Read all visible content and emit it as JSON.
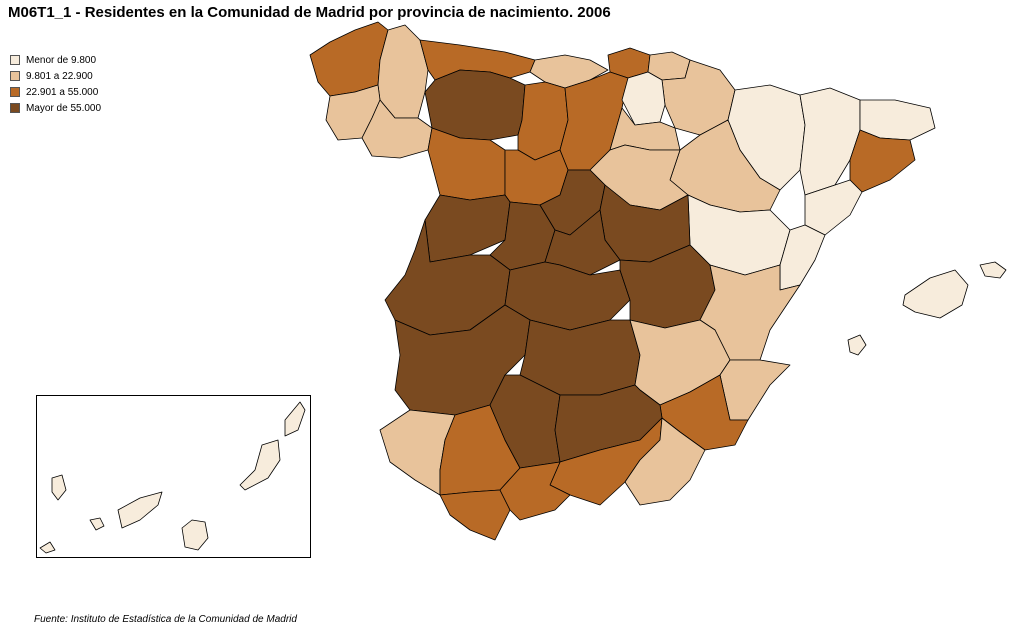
{
  "title": "M06T1_1 - Residentes en la Comunidad de Madrid por provincia de nacimiento. 2006",
  "footer": "Fuente: Instituto de Estadística de la Comunidad de Madrid",
  "legend": [
    {
      "label": "Menor de 9.800",
      "color": "#f7ecdc"
    },
    {
      "label": "9.801 a 22.900",
      "color": "#e8c39b"
    },
    {
      "label": "22.901 a 55.000",
      "color": "#b86a26"
    },
    {
      "label": "Mayor de 55.000",
      "color": "#7a4a20"
    }
  ],
  "chart_data": {
    "type": "choropleth",
    "classes": [
      "Menor de 9.800",
      "9.801 a 22.900",
      "22.901 a 55.000",
      "Mayor de 55.000"
    ],
    "provinces": [
      {
        "id": "coruna",
        "class": 2
      },
      {
        "id": "lugo",
        "class": 1
      },
      {
        "id": "asturias",
        "class": 2
      },
      {
        "id": "cantabria",
        "class": 1
      },
      {
        "id": "vizcaya",
        "class": 2
      },
      {
        "id": "guipuzcoa",
        "class": 1
      },
      {
        "id": "pontevedra",
        "class": 1
      },
      {
        "id": "orense",
        "class": 1
      },
      {
        "id": "leon",
        "class": 3
      },
      {
        "id": "palencia",
        "class": 2
      },
      {
        "id": "burgos",
        "class": 2
      },
      {
        "id": "alava",
        "class": 0
      },
      {
        "id": "navarra",
        "class": 1
      },
      {
        "id": "rioja",
        "class": 1
      },
      {
        "id": "huesca",
        "class": 0
      },
      {
        "id": "lleida",
        "class": 0
      },
      {
        "id": "girona",
        "class": 0
      },
      {
        "id": "barcelona",
        "class": 2
      },
      {
        "id": "zamora",
        "class": 2
      },
      {
        "id": "valladolid",
        "class": 2
      },
      {
        "id": "soria",
        "class": 1
      },
      {
        "id": "zaragoza",
        "class": 1
      },
      {
        "id": "tarragona",
        "class": 0
      },
      {
        "id": "salamanca",
        "class": 3
      },
      {
        "id": "avila",
        "class": 3
      },
      {
        "id": "segovia",
        "class": 3
      },
      {
        "id": "guadalajara",
        "class": 3
      },
      {
        "id": "teruel",
        "class": 0
      },
      {
        "id": "castellon",
        "class": 0
      },
      {
        "id": "caceres",
        "class": 3
      },
      {
        "id": "toledo",
        "class": 3
      },
      {
        "id": "cuenca",
        "class": 3
      },
      {
        "id": "valencia",
        "class": 1
      },
      {
        "id": "badajoz",
        "class": 3
      },
      {
        "id": "ciudad-real",
        "class": 3
      },
      {
        "id": "albacete",
        "class": 1
      },
      {
        "id": "alicante",
        "class": 1
      },
      {
        "id": "murcia",
        "class": 2
      },
      {
        "id": "huelva",
        "class": 1
      },
      {
        "id": "sevilla",
        "class": 2
      },
      {
        "id": "cordoba",
        "class": 3
      },
      {
        "id": "jaen",
        "class": 3
      },
      {
        "id": "granada",
        "class": 2
      },
      {
        "id": "almeria",
        "class": 1
      },
      {
        "id": "cadiz",
        "class": 2
      },
      {
        "id": "malaga",
        "class": 2
      },
      {
        "id": "baleares",
        "class": 0
      },
      {
        "id": "canarias",
        "class": 0
      }
    ]
  }
}
